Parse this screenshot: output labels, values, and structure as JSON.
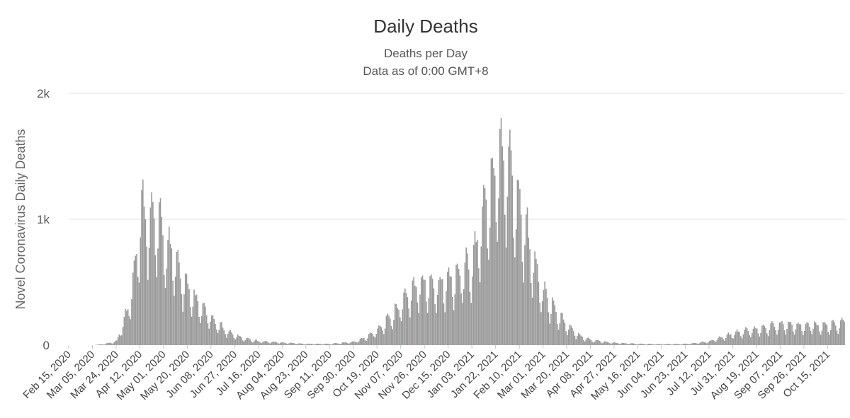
{
  "chart_data": {
    "type": "bar",
    "title": "Daily Deaths",
    "subtitle": [
      "Deaths per Day",
      "Data as of 0:00 GMT+8"
    ],
    "xlabel": "",
    "ylabel": "Novel Coronavirus Daily Deaths",
    "ylim": [
      0,
      2000
    ],
    "y_ticks": [
      0,
      1000,
      2000
    ],
    "y_tick_labels": [
      "0",
      "1k",
      "2k"
    ],
    "grid": true,
    "x_tick_labels": [
      "Feb 15, 2020",
      "Mar 05, 2020",
      "Mar 24, 2020",
      "Apr 12, 2020",
      "May 01, 2020",
      "May 20, 2020",
      "Jun 08, 2020",
      "Jun 27, 2020",
      "Jul 16, 2020",
      "Aug 04, 2020",
      "Aug 23, 2020",
      "Sep 11, 2020",
      "Sep 30, 2020",
      "Oct 19, 2020",
      "Nov 07, 2020",
      "Nov 26, 2020",
      "Dec 15, 2020",
      "Jan 03, 2021",
      "Jan 22, 2021",
      "Feb 10, 2021",
      "Mar 01, 2021",
      "Mar 20, 2021",
      "Apr 08, 2021",
      "Apr 27, 2021",
      "May 16, 2021",
      "Jun 04, 2021",
      "Jun 23, 2021",
      "Jul 12, 2021",
      "Jul 31, 2021",
      "Aug 19, 2021",
      "Sep 07, 2021",
      "Sep 26, 2021",
      "Oct 15, 2021"
    ],
    "x_range": [
      "Feb 15, 2020",
      "Oct 28, 2021"
    ],
    "series_profile": {
      "name": "Daily Deaths",
      "color": "#999999",
      "dates": [
        "Feb 15, 2020",
        "Mar 05, 2020",
        "Mar 15, 2020",
        "Mar 24, 2020",
        "Apr 02, 2020",
        "Apr 09, 2020",
        "Apr 12, 2020",
        "Apr 16, 2020",
        "Apr 21, 2020",
        "Apr 25, 2020",
        "May 01, 2020",
        "May 10, 2020",
        "May 20, 2020",
        "May 30, 2020",
        "Jun 08, 2020",
        "Jun 20, 2020",
        "Jul 01, 2020",
        "Jul 16, 2020",
        "Aug 04, 2020",
        "Aug 23, 2020",
        "Sep 11, 2020",
        "Sep 30, 2020",
        "Oct 10, 2020",
        "Oct 19, 2020",
        "Oct 28, 2020",
        "Nov 07, 2020",
        "Nov 15, 2020",
        "Nov 26, 2020",
        "Dec 05, 2020",
        "Dec 15, 2020",
        "Dec 25, 2020",
        "Jan 03, 2021",
        "Jan 10, 2021",
        "Jan 16, 2021",
        "Jan 22, 2021",
        "Jan 28, 2021",
        "Feb 03, 2021",
        "Feb 10, 2021",
        "Feb 18, 2021",
        "Feb 25, 2021",
        "Mar 01, 2021",
        "Mar 10, 2021",
        "Mar 20, 2021",
        "Mar 30, 2021",
        "Apr 08, 2021",
        "Apr 27, 2021",
        "May 16, 2021",
        "Jun 04, 2021",
        "Jun 23, 2021",
        "Jul 05, 2021",
        "Jul 12, 2021",
        "Jul 22, 2021",
        "Jul 31, 2021",
        "Aug 10, 2021",
        "Aug 19, 2021",
        "Aug 28, 2021",
        "Sep 07, 2021",
        "Sep 26, 2021",
        "Oct 15, 2021",
        "Oct 28, 2021"
      ],
      "values": [
        0,
        0,
        10,
        30,
        280,
        700,
        1000,
        1050,
        980,
        960,
        820,
        650,
        420,
        300,
        200,
        110,
        60,
        30,
        20,
        10,
        10,
        25,
        60,
        120,
        200,
        320,
        430,
        480,
        470,
        500,
        560,
        650,
        900,
        1200,
        1400,
        1500,
        1350,
        1050,
        780,
        500,
        400,
        270,
        150,
        70,
        40,
        18,
        10,
        8,
        10,
        20,
        30,
        60,
        90,
        110,
        120,
        140,
        160,
        150,
        150,
        170
      ]
    }
  }
}
